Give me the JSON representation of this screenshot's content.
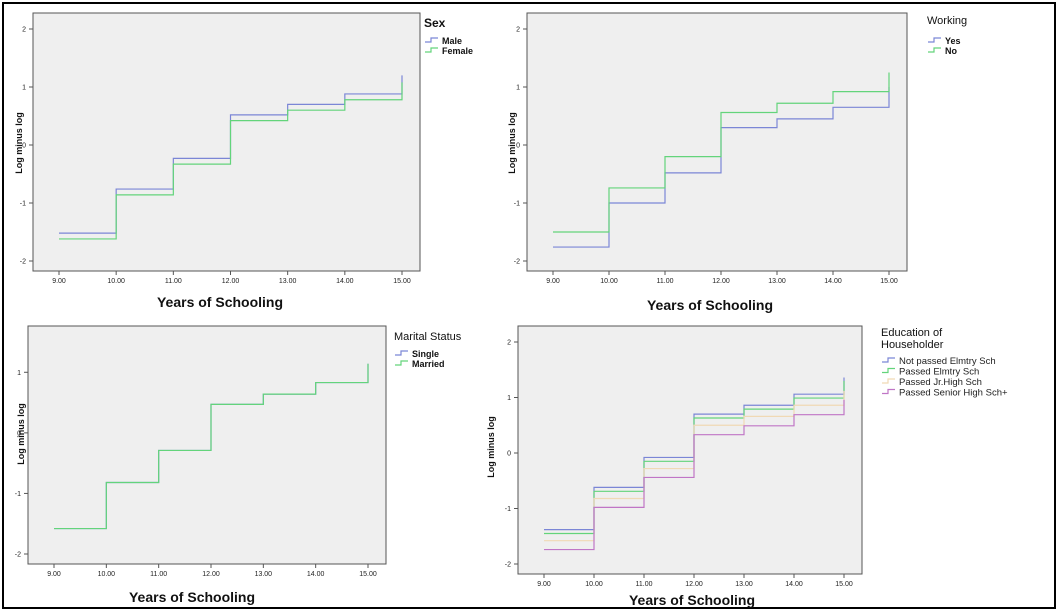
{
  "colors": {
    "blue": "#7b86d6",
    "green": "#63d47b",
    "beige": "#f0d9b5",
    "purple": "#c076c6",
    "plot_background": "#efefef"
  },
  "chart_data": [
    {
      "type": "line",
      "step": true,
      "xlabel": "Years of Schooling",
      "ylabel": "Log minus log",
      "xlim": [
        9,
        15
      ],
      "ylim": [
        -2,
        2
      ],
      "x_ticks": [
        "9.00",
        "10.00",
        "11.00",
        "12.00",
        "13.00",
        "14.00",
        "15.00"
      ],
      "y_ticks": [
        "-2",
        "-1",
        "0",
        "1",
        "2"
      ],
      "legend": {
        "title": "Sex",
        "placement": "right"
      },
      "series": [
        {
          "name": "Male",
          "color": "blue",
          "x": [
            9,
            10,
            11,
            12,
            13,
            14,
            15
          ],
          "y": [
            -1.52,
            -0.76,
            -0.23,
            0.52,
            0.7,
            0.88,
            1.2
          ]
        },
        {
          "name": "Female",
          "color": "green",
          "x": [
            9,
            10,
            11,
            12,
            13,
            14,
            15
          ],
          "y": [
            -1.62,
            -0.86,
            -0.33,
            0.42,
            0.6,
            0.78,
            1.08
          ]
        }
      ]
    },
    {
      "type": "line",
      "step": true,
      "xlabel": "Years of Schooling",
      "ylabel": "Log minus log",
      "xlim": [
        9,
        15
      ],
      "ylim": [
        -2,
        2
      ],
      "x_ticks": [
        "9.00",
        "10.00",
        "11.00",
        "12.00",
        "13.00",
        "14.00",
        "15.00"
      ],
      "y_ticks": [
        "-2",
        "-1",
        "0",
        "1",
        "2"
      ],
      "legend": {
        "title": "Working",
        "placement": "right"
      },
      "series": [
        {
          "name": "Yes",
          "color": "blue",
          "x": [
            9,
            10,
            11,
            12,
            13,
            14,
            15
          ],
          "y": [
            -1.76,
            -1.0,
            -0.48,
            0.3,
            0.45,
            0.65,
            1.0
          ]
        },
        {
          "name": "No",
          "color": "green",
          "x": [
            9,
            10,
            11,
            12,
            13,
            14,
            15
          ],
          "y": [
            -1.5,
            -0.74,
            -0.2,
            0.56,
            0.72,
            0.92,
            1.25
          ]
        }
      ]
    },
    {
      "type": "line",
      "step": true,
      "xlabel": "Years of Schooling",
      "ylabel": "Log minus log",
      "xlim": [
        9,
        15
      ],
      "ylim": [
        -2,
        1.5
      ],
      "x_ticks": [
        "9.00",
        "10.00",
        "11.00",
        "12.00",
        "13.00",
        "14.00",
        "15.00"
      ],
      "y_ticks": [
        "-2",
        "-1",
        "0",
        "1"
      ],
      "legend": {
        "title": "Marital Status",
        "placement": "right"
      },
      "series": [
        {
          "name": "Single",
          "color": "blue",
          "x": [
            9,
            10,
            11,
            12,
            13,
            14,
            15
          ],
          "y": [
            -1.58,
            -0.82,
            -0.29,
            0.47,
            0.64,
            0.83,
            1.14
          ]
        },
        {
          "name": "Married",
          "color": "green",
          "x": [
            9,
            10,
            11,
            12,
            13,
            14,
            15
          ],
          "y": [
            -1.58,
            -0.82,
            -0.29,
            0.47,
            0.64,
            0.83,
            1.14
          ]
        }
      ]
    },
    {
      "type": "line",
      "step": true,
      "xlabel": "Years of Schooling",
      "ylabel": "Log minus log",
      "xlim": [
        9,
        15
      ],
      "ylim": [
        -2,
        2
      ],
      "x_ticks": [
        "9.00",
        "10.00",
        "11.00",
        "12.00",
        "13.00",
        "14.00",
        "15.00"
      ],
      "y_ticks": [
        "-2",
        "-1",
        "0",
        "1",
        "2"
      ],
      "legend": {
        "title": "Education of Householder",
        "placement": "right"
      },
      "series": [
        {
          "name": "Not passed Elmtry Sch",
          "color": "blue",
          "x": [
            9,
            10,
            11,
            12,
            13,
            14,
            15
          ],
          "y": [
            -1.38,
            -0.62,
            -0.08,
            0.7,
            0.86,
            1.06,
            1.36
          ]
        },
        {
          "name": "Passed Elmtry Sch",
          "color": "green",
          "x": [
            9,
            10,
            11,
            12,
            13,
            14,
            15
          ],
          "y": [
            -1.45,
            -0.69,
            -0.15,
            0.63,
            0.79,
            0.99,
            1.3
          ]
        },
        {
          "name": "Passed Jr.High Sch",
          "color": "beige",
          "x": [
            9,
            10,
            11,
            12,
            13,
            14,
            15
          ],
          "y": [
            -1.58,
            -0.82,
            -0.28,
            0.5,
            0.66,
            0.86,
            1.12
          ]
        },
        {
          "name": "Passed Senior High Sch+",
          "color": "purple",
          "x": [
            9,
            10,
            11,
            12,
            13,
            14,
            15
          ],
          "y": [
            -1.74,
            -0.98,
            -0.44,
            0.33,
            0.49,
            0.69,
            0.96
          ]
        }
      ]
    }
  ]
}
